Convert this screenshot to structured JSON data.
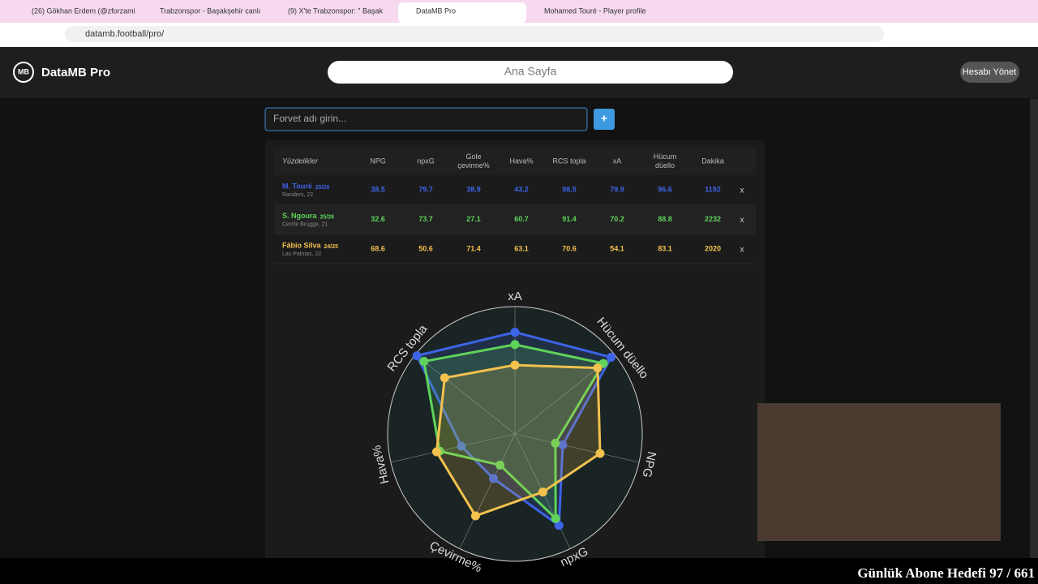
{
  "browser": {
    "tabs": [
      "(26) Gökhan Erdem (@zforzami",
      "Trabzonspor - Başakşehir canlı",
      "(9) X'te Trabzonspor: \" Başak",
      "DataMB Pro",
      "Mohamed Touré - Player profile"
    ],
    "address": "datamb.football/pro/"
  },
  "header": {
    "logo": "MB",
    "brand": "DataMB Pro",
    "nav": "Ana Sayfa",
    "account": "Hesabı Yönet"
  },
  "search": {
    "placeholder": "Forvet adı girin...",
    "button": "+"
  },
  "table": {
    "headers": [
      [
        "Yüzdelikler"
      ],
      [
        "NPG"
      ],
      [
        "npxG"
      ],
      [
        "Gole",
        "çevirme%"
      ],
      [
        "Hava%"
      ],
      [
        "RCS topla"
      ],
      [
        "xA"
      ],
      [
        "Hücum",
        "düello"
      ],
      [
        "Dakika"
      ]
    ],
    "rows": [
      {
        "name": "M. Touré",
        "season": "25/26",
        "info": "Randers, 22",
        "color": "#3d63e6",
        "values": [
          38.5,
          79.7,
          38.9,
          43.2,
          98.5,
          79.9,
          96.6,
          1192
        ],
        "remove": "x"
      },
      {
        "name": "S. Ngoura",
        "season": "25/26",
        "info": "Cercle Brugge, 21",
        "color": "#5fd35a",
        "values": [
          32.6,
          73.7,
          27.1,
          60.7,
          91.4,
          70.2,
          88.8,
          2232
        ],
        "remove": "x"
      },
      {
        "name": "Fábio Silva",
        "season": "24/25",
        "info": "Las Palmas, 22",
        "color": "#f2c14e",
        "values": [
          68.6,
          50.6,
          71.4,
          63.1,
          70.6,
          54.1,
          83.1,
          2020
        ],
        "remove": "x"
      }
    ]
  },
  "radar": {
    "axes": [
      "xA",
      "Hücum düello",
      "NPG",
      "npxG",
      "Çevirme%",
      "Hava%",
      "RCS topla"
    ],
    "rlim": [
      0,
      100
    ]
  },
  "overlay": "Günlük Abone Hedefi 97 / 661"
}
